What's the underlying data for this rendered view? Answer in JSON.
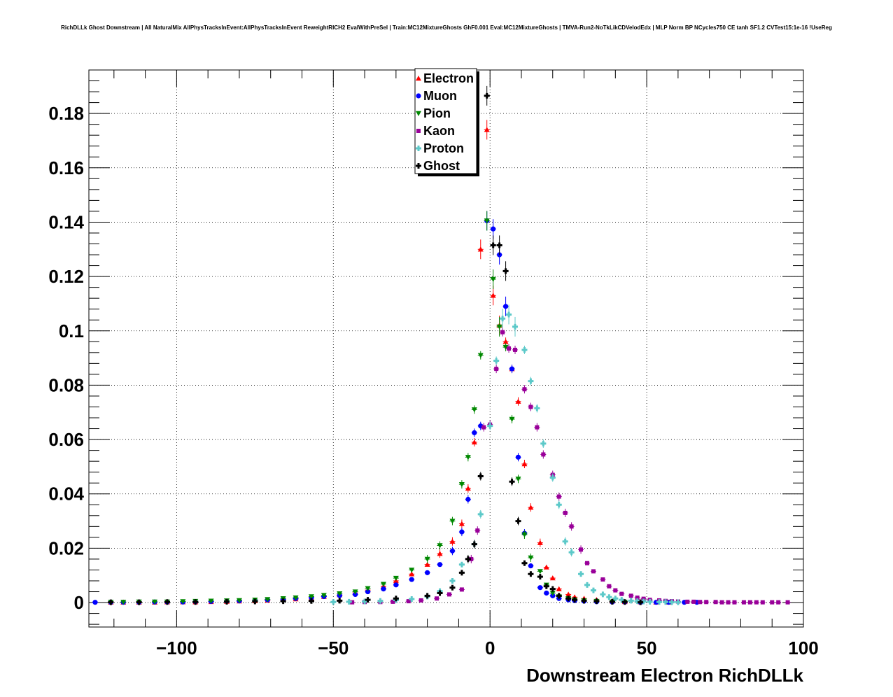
{
  "chart_data": {
    "type": "scatter",
    "title": "RichDLLk Ghost Downstream | All NaturalMix AllPhysTracksInEvent:AllPhysTracksInEvent ReweightRICH2 EvalWithPreSel | Train:MC12MixtureGhosts GhF0.001 Eval:MC12MixtureGhosts | TMVA-Run2-NoTkLikCDVelodEdx | MLP Norm BP NCycles750 CE tanh SF1.2 CVTest15:1e-16 !UseReg",
    "xlabel": "Downstream Electron RichDLLk",
    "ylabel": "",
    "xlim": [
      -128,
      100
    ],
    "ylim": [
      -0.009,
      0.196
    ],
    "xticks": [
      -100,
      -50,
      0,
      50,
      100
    ],
    "xtick_labels": [
      "−100",
      "−50",
      "0",
      "50",
      "100"
    ],
    "yticks": [
      0,
      0.02,
      0.04,
      0.06,
      0.08,
      0.1,
      0.12,
      0.14,
      0.16,
      0.18
    ],
    "ytick_labels": [
      "0",
      "0.02",
      "0.04",
      "0.06",
      "0.08",
      "0.1",
      "0.12",
      "0.14",
      "0.16",
      "0.18"
    ],
    "grid": true,
    "legend_position": "top-center",
    "series": [
      {
        "name": "Electron",
        "color": "#ff0000",
        "marker": "triangle-up",
        "x": [
          -121,
          -117,
          -112,
          -107,
          -103,
          -98,
          -94,
          -89,
          -84,
          -80,
          -75,
          -71,
          -66,
          -62,
          -57,
          -53,
          -48,
          -43,
          -39,
          -34,
          -30,
          -25,
          -20,
          -16,
          -12,
          -9,
          -7,
          -5,
          -3,
          -1,
          1,
          3,
          5,
          7,
          9,
          11,
          13,
          16,
          18,
          20,
          22,
          25,
          27,
          30,
          34,
          39,
          43,
          48,
          53,
          57
        ],
        "y": [
          0.0001,
          0.0001,
          0.0001,
          0.0001,
          0.0002,
          0.0002,
          0.0002,
          0.0003,
          0.0004,
          0.0005,
          0.0006,
          0.0008,
          0.001,
          0.0013,
          0.0017,
          0.0022,
          0.0028,
          0.0036,
          0.0046,
          0.006,
          0.008,
          0.0105,
          0.014,
          0.018,
          0.0225,
          0.029,
          0.042,
          0.059,
          0.13,
          0.174,
          0.113,
          0.102,
          0.096,
          0.086,
          0.074,
          0.051,
          0.035,
          0.022,
          0.013,
          0.009,
          0.005,
          0.003,
          0.002,
          0.0015,
          0.001,
          0.0005,
          0.0003,
          0.0002,
          0.0001,
          0.0001
        ]
      },
      {
        "name": "Muon",
        "color": "#0000ff",
        "marker": "circle",
        "x": [
          -126,
          -121,
          -117,
          -112,
          -107,
          -103,
          -98,
          -94,
          -89,
          -84,
          -80,
          -75,
          -71,
          -66,
          -62,
          -57,
          -53,
          -48,
          -43,
          -39,
          -34,
          -30,
          -25,
          -20,
          -16,
          -12,
          -9,
          -7,
          -5,
          -3,
          -1,
          1,
          3,
          5,
          7,
          9,
          11,
          13,
          16,
          18,
          20,
          22,
          25,
          27,
          30,
          34,
          39,
          43,
          48,
          53,
          57,
          62,
          66
        ],
        "y": [
          0.0001,
          0.0001,
          0.0001,
          0.0001,
          0.0002,
          0.0002,
          0.0002,
          0.0003,
          0.0004,
          0.0005,
          0.0006,
          0.0008,
          0.001,
          0.0012,
          0.0015,
          0.0018,
          0.0022,
          0.0026,
          0.003,
          0.004,
          0.005,
          0.0065,
          0.0085,
          0.011,
          0.014,
          0.019,
          0.026,
          0.038,
          0.0625,
          0.065,
          0.1405,
          0.1375,
          0.128,
          0.109,
          0.086,
          0.0535,
          0.0255,
          0.0135,
          0.0055,
          0.0035,
          0.0025,
          0.0015,
          0.001,
          0.0007,
          0.0005,
          0.0003,
          0.0002,
          0.0002,
          0.0001,
          0.0001,
          0.0001,
          0.0001,
          0.0001
        ]
      },
      {
        "name": "Pion",
        "color": "#008800",
        "marker": "triangle-down",
        "x": [
          -121,
          -117,
          -112,
          -107,
          -103,
          -98,
          -94,
          -89,
          -84,
          -80,
          -75,
          -71,
          -66,
          -62,
          -57,
          -53,
          -48,
          -43,
          -39,
          -34,
          -30,
          -25,
          -20,
          -16,
          -12,
          -9,
          -7,
          -5,
          -3,
          -1,
          1,
          3,
          5,
          7,
          9,
          11,
          13,
          16,
          18,
          20,
          22,
          25,
          27,
          30,
          34,
          39,
          43
        ],
        "y": [
          0.0002,
          0.0002,
          0.0003,
          0.0003,
          0.0003,
          0.0004,
          0.0005,
          0.0006,
          0.0007,
          0.0008,
          0.001,
          0.0012,
          0.0015,
          0.0018,
          0.0022,
          0.0027,
          0.0033,
          0.004,
          0.0052,
          0.0068,
          0.009,
          0.012,
          0.016,
          0.021,
          0.03,
          0.0435,
          0.0535,
          0.071,
          0.091,
          0.1405,
          0.119,
          0.1015,
          0.094,
          0.0675,
          0.0455,
          0.025,
          0.0165,
          0.0115,
          0.0065,
          0.0035,
          0.0022,
          0.0015,
          0.001,
          0.0007,
          0.0005,
          0.0003,
          0.0002
        ]
      },
      {
        "name": "Kaon",
        "color": "#990099",
        "marker": "square",
        "x": [
          -44,
          -40,
          -35,
          -31,
          -26,
          -22,
          -17,
          -13,
          -9,
          -6,
          -4,
          -2,
          0,
          2,
          4,
          6,
          8,
          11,
          13,
          15,
          17,
          20,
          22,
          24,
          26,
          29,
          31,
          33,
          36,
          38,
          40,
          42,
          45,
          47,
          49,
          51,
          54,
          56,
          58,
          60,
          63,
          65,
          67,
          69,
          72,
          74,
          76,
          78,
          81,
          83,
          85,
          87,
          90,
          92,
          95
        ],
        "y": [
          0.0001,
          0.0002,
          0.0002,
          0.0003,
          0.0005,
          0.0008,
          0.0015,
          0.003,
          0.0048,
          0.016,
          0.0265,
          0.0645,
          0.0655,
          0.086,
          0.0995,
          0.0935,
          0.093,
          0.0785,
          0.072,
          0.0645,
          0.0545,
          0.047,
          0.039,
          0.033,
          0.028,
          0.0195,
          0.0145,
          0.0115,
          0.0085,
          0.006,
          0.0045,
          0.0032,
          0.0025,
          0.0018,
          0.0014,
          0.001,
          0.0008,
          0.0006,
          0.0005,
          0.0004,
          0.0003,
          0.0003,
          0.0002,
          0.0002,
          0.0002,
          0.0001,
          0.0001,
          0.0001,
          0.0001,
          0.0001,
          0.0001,
          0.0001,
          0.0001,
          0.0001,
          0.0001
        ]
      },
      {
        "name": "Proton",
        "color": "#5cc9c9",
        "marker": "cross",
        "x": [
          -50,
          -45,
          -40,
          -35,
          -30,
          -25,
          -20,
          -16,
          -12,
          -9,
          -5,
          -3,
          0,
          2,
          4,
          6,
          8,
          11,
          13,
          15,
          17,
          20,
          22,
          24,
          26,
          29,
          31,
          33,
          36,
          38,
          40,
          42,
          45,
          47,
          49,
          51,
          54,
          56,
          58,
          60
        ],
        "y": [
          0.0002,
          0.0003,
          0.0004,
          0.0006,
          0.0009,
          0.0013,
          0.0022,
          0.0042,
          0.008,
          0.014,
          0.0215,
          0.0325,
          0.065,
          0.089,
          0.1045,
          0.106,
          0.1015,
          0.093,
          0.0815,
          0.0715,
          0.0585,
          0.046,
          0.036,
          0.0225,
          0.0185,
          0.0105,
          0.0065,
          0.0045,
          0.003,
          0.002,
          0.0015,
          0.001,
          0.0007,
          0.0005,
          0.0004,
          0.0003,
          0.0002,
          0.0002,
          0.0001,
          0.0001
        ]
      },
      {
        "name": "Ghost",
        "color": "#000000",
        "marker": "cross",
        "x": [
          -121,
          -112,
          -103,
          -94,
          -84,
          -75,
          -66,
          -57,
          -48,
          -39,
          -30,
          -20,
          -16,
          -12,
          -9,
          -7,
          -5,
          -3,
          -1,
          1,
          3,
          5,
          7,
          9,
          11,
          13,
          16,
          18,
          20,
          22,
          25,
          27,
          30,
          34,
          39,
          43,
          48
        ],
        "y": [
          0.0001,
          0.0001,
          0.0002,
          0.0002,
          0.0003,
          0.0004,
          0.0005,
          0.0006,
          0.0007,
          0.001,
          0.0015,
          0.0025,
          0.0035,
          0.0055,
          0.011,
          0.016,
          0.0215,
          0.0465,
          0.1865,
          0.1315,
          0.1315,
          0.122,
          0.0445,
          0.03,
          0.0145,
          0.0105,
          0.0095,
          0.006,
          0.005,
          0.0025,
          0.0015,
          0.001,
          0.0007,
          0.0005,
          0.0003,
          0.0002,
          0.0001
        ]
      }
    ]
  }
}
